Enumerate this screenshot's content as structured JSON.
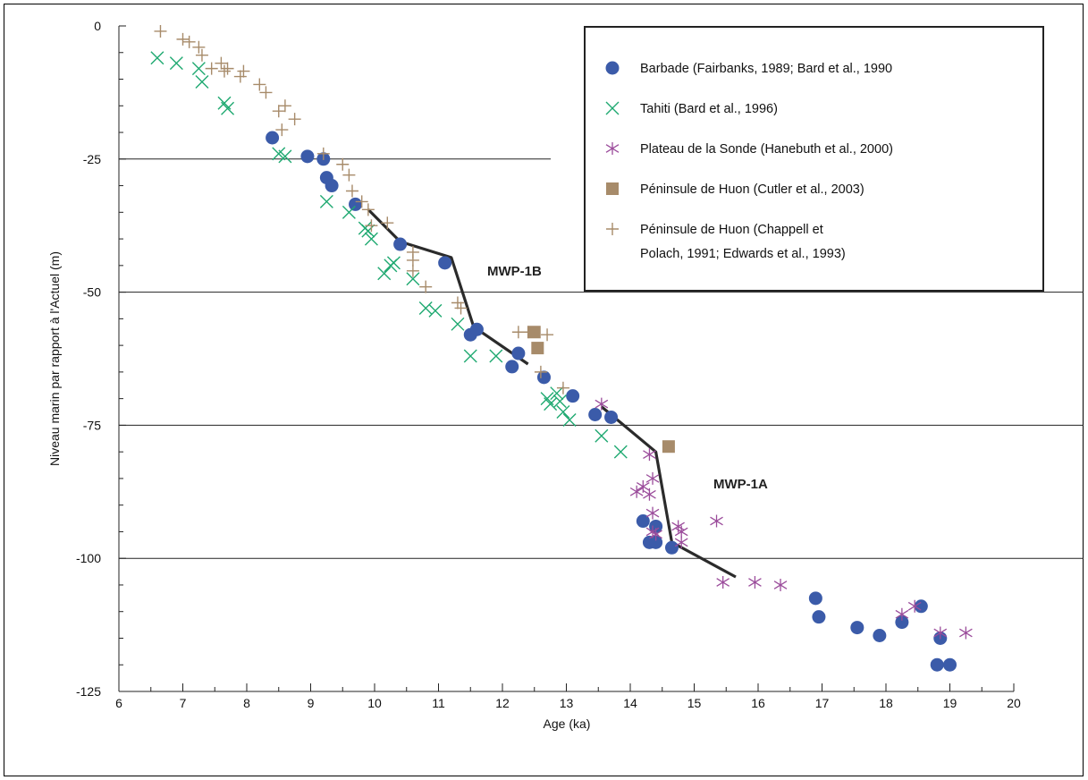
{
  "chart_data": {
    "type": "scatter",
    "title": "",
    "xlabel": "Age (ka)",
    "ylabel": "Niveau marin par rapport à l'Actuel (m)",
    "xlim": [
      6,
      20
    ],
    "ylim": [
      -125,
      0
    ],
    "xticks": [
      6,
      7,
      8,
      9,
      10,
      11,
      12,
      13,
      14,
      15,
      16,
      17,
      18,
      19,
      20
    ],
    "yticks": [
      0,
      -25,
      -50,
      -75,
      -100,
      -125
    ],
    "grid": "horizontal lines at -25, -50, -75, -100",
    "legend_position": "top-right",
    "colors": {
      "barbade": "#3b5ba9",
      "tahiti": "#1fa971",
      "sonde": "#9b4c9b",
      "huon_cutler": "#a78b6a",
      "huon_chappell": "#a78b6a",
      "trend": "#2b2b2b"
    },
    "series": [
      {
        "key": "barbade",
        "name": "Barbade (Fairbanks, 1989; Bard et al., 1990",
        "marker": "circle",
        "points": [
          [
            8.4,
            -21
          ],
          [
            8.95,
            -24.5
          ],
          [
            9.2,
            -25
          ],
          [
            9.25,
            -28.5
          ],
          [
            9.33,
            -30
          ],
          [
            9.7,
            -33.5
          ],
          [
            10.4,
            -41
          ],
          [
            11.1,
            -44.5
          ],
          [
            11.5,
            -58
          ],
          [
            11.6,
            -57
          ],
          [
            12.15,
            -64
          ],
          [
            12.25,
            -61.5
          ],
          [
            12.65,
            -66
          ],
          [
            13.1,
            -69.5
          ],
          [
            13.45,
            -73
          ],
          [
            13.7,
            -73.5
          ],
          [
            14.2,
            -93
          ],
          [
            14.3,
            -97
          ],
          [
            14.4,
            -94
          ],
          [
            14.4,
            -97
          ],
          [
            14.65,
            -98
          ],
          [
            16.9,
            -107.5
          ],
          [
            16.95,
            -111
          ],
          [
            17.55,
            -113
          ],
          [
            17.9,
            -114.5
          ],
          [
            18.25,
            -112
          ],
          [
            18.55,
            -109
          ],
          [
            18.8,
            -120
          ],
          [
            18.85,
            -115
          ],
          [
            19.0,
            -120
          ]
        ]
      },
      {
        "key": "tahiti",
        "name": "Tahiti (Bard et al., 1996)",
        "marker": "x",
        "points": [
          [
            6.6,
            -6
          ],
          [
            6.9,
            -7
          ],
          [
            7.25,
            -8
          ],
          [
            7.3,
            -10.5
          ],
          [
            7.65,
            -14.5
          ],
          [
            7.7,
            -15.5
          ],
          [
            8.5,
            -24
          ],
          [
            8.6,
            -24.5
          ],
          [
            9.25,
            -33
          ],
          [
            9.6,
            -35
          ],
          [
            9.85,
            -38
          ],
          [
            9.9,
            -38.5
          ],
          [
            9.95,
            -40
          ],
          [
            10.15,
            -46.5
          ],
          [
            10.25,
            -45
          ],
          [
            10.3,
            -44.5
          ],
          [
            10.6,
            -47.5
          ],
          [
            10.8,
            -53
          ],
          [
            10.95,
            -53.5
          ],
          [
            11.3,
            -56
          ],
          [
            11.5,
            -62
          ],
          [
            11.9,
            -62
          ],
          [
            12.7,
            -70
          ],
          [
            12.75,
            -71
          ],
          [
            12.85,
            -69
          ],
          [
            12.9,
            -70.5
          ],
          [
            12.95,
            -72.5
          ],
          [
            13.05,
            -74
          ],
          [
            13.55,
            -77
          ],
          [
            13.85,
            -80
          ]
        ]
      },
      {
        "key": "sonde",
        "name": "Plateau de la Sonde (Hanebuth et al., 2000)",
        "marker": "asterisk",
        "points": [
          [
            13.55,
            -71
          ],
          [
            14.1,
            -87.5
          ],
          [
            14.2,
            -86.5
          ],
          [
            14.3,
            -80.5
          ],
          [
            14.3,
            -88
          ],
          [
            14.35,
            -85
          ],
          [
            14.35,
            -91.5
          ],
          [
            14.35,
            -95
          ],
          [
            14.4,
            -95.5
          ],
          [
            14.75,
            -94
          ],
          [
            14.8,
            -95
          ],
          [
            14.8,
            -97
          ],
          [
            15.35,
            -93
          ],
          [
            15.45,
            -104.5
          ],
          [
            15.95,
            -104.5
          ],
          [
            16.35,
            -105
          ],
          [
            18.25,
            -110.5
          ],
          [
            18.45,
            -109
          ],
          [
            18.85,
            -114
          ],
          [
            19.25,
            -114
          ]
        ]
      },
      {
        "key": "huon_cutler",
        "name": "Péninsule de Huon (Cutler et al., 2003)",
        "marker": "square",
        "points": [
          [
            12.5,
            -57.5
          ],
          [
            12.55,
            -60.5
          ],
          [
            14.6,
            -79
          ]
        ]
      },
      {
        "key": "huon_chappell",
        "name": "Péninsule de Huon (Chappell et Polach, 1991; Edwards et al., 1993)",
        "marker": "plus",
        "points": [
          [
            6.65,
            -1
          ],
          [
            7.0,
            -2.5
          ],
          [
            7.1,
            -3
          ],
          [
            7.25,
            -4
          ],
          [
            7.3,
            -5.5
          ],
          [
            7.45,
            -8
          ],
          [
            7.6,
            -7
          ],
          [
            7.65,
            -8.5
          ],
          [
            7.7,
            -8
          ],
          [
            7.9,
            -9.5
          ],
          [
            7.95,
            -8.5
          ],
          [
            8.2,
            -11
          ],
          [
            8.3,
            -12.5
          ],
          [
            8.5,
            -16
          ],
          [
            8.6,
            -15
          ],
          [
            8.75,
            -17.5
          ],
          [
            8.55,
            -19.5
          ],
          [
            9.2,
            -24
          ],
          [
            9.5,
            -26
          ],
          [
            9.6,
            -28
          ],
          [
            9.65,
            -31
          ],
          [
            9.8,
            -33
          ],
          [
            9.9,
            -34.5
          ],
          [
            9.95,
            -37.5
          ],
          [
            10.2,
            -37
          ],
          [
            10.6,
            -42.5
          ],
          [
            10.6,
            -44
          ],
          [
            10.6,
            -46
          ],
          [
            10.8,
            -49
          ],
          [
            11.3,
            -52
          ],
          [
            11.35,
            -53
          ],
          [
            12.25,
            -57.5
          ],
          [
            12.4,
            -57.5
          ],
          [
            12.7,
            -58
          ],
          [
            12.6,
            -65
          ],
          [
            12.95,
            -68
          ]
        ]
      }
    ],
    "trend_lines": [
      {
        "key": "mwp1b",
        "label": "MWP-1B",
        "points": [
          [
            9.9,
            -34.5
          ],
          [
            10.4,
            -40.5
          ],
          [
            11.2,
            -43.5
          ],
          [
            11.55,
            -56.5
          ],
          [
            12.4,
            -63.5
          ]
        ]
      },
      {
        "key": "mwp1a",
        "label": "MWP-1A",
        "points": [
          [
            13.55,
            -71.5
          ],
          [
            14.4,
            -80
          ],
          [
            14.65,
            -97
          ],
          [
            15.65,
            -103.5
          ]
        ]
      }
    ],
    "annotations": {
      "mwp1b": "MWP-1B",
      "mwp1a": "MWP-1A"
    },
    "legend": {
      "entries": [
        {
          "key": "barbade",
          "lines": [
            "Barbade (Fairbanks, 1989; Bard et al., 1990"
          ]
        },
        {
          "key": "tahiti",
          "lines": [
            "Tahiti (Bard et al., 1996)"
          ]
        },
        {
          "key": "sonde",
          "lines": [
            "Plateau de la Sonde (Hanebuth et al., 2000)"
          ]
        },
        {
          "key": "huon_cutler",
          "lines": [
            "Péninsule de Huon (Cutler et al., 2003)"
          ]
        },
        {
          "key": "huon_chappell",
          "lines": [
            "Péninsule de Huon (Chappell et",
            "Polach, 1991; Edwards et al., 1993)"
          ]
        }
      ]
    }
  }
}
